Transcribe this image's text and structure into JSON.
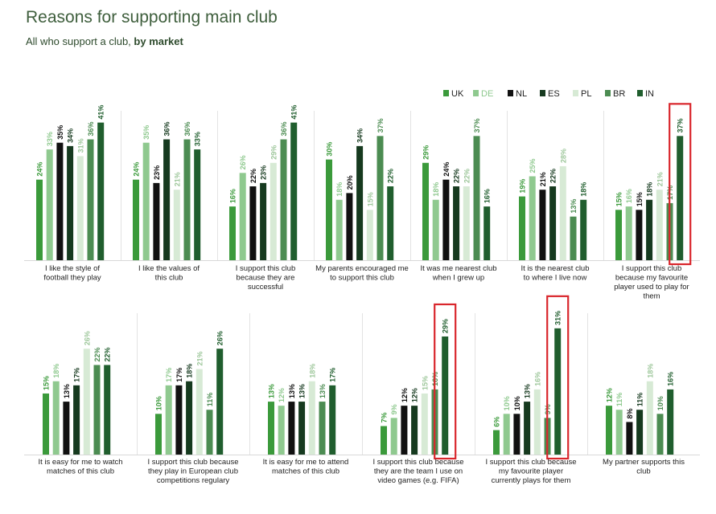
{
  "header": {
    "title": "Reasons for supporting main club",
    "subtitle_prefix": "All who support a club, ",
    "subtitle_bold": "by market"
  },
  "chart_data": {
    "type": "bar",
    "title": "Reasons for supporting main club",
    "ylabel": "",
    "ylim": [
      0,
      45
    ],
    "series": [
      {
        "name": "UK",
        "color": "#3b9a3b"
      },
      {
        "name": "DE",
        "color": "#8fc98f"
      },
      {
        "name": "NL",
        "color": "#111111"
      },
      {
        "name": "ES",
        "color": "#163a1f"
      },
      {
        "name": "PL",
        "color": "#d7ead5"
      },
      {
        "name": "BR",
        "color": "#4c8c52"
      },
      {
        "name": "IN",
        "color": "#205e2e"
      }
    ],
    "panels": [
      {
        "category": "I like the style of football they play",
        "values": [
          24,
          33,
          35,
          34,
          31,
          36,
          41
        ],
        "labels": [
          "24%",
          "33%",
          "35%",
          "34%",
          "31%",
          "36%",
          "41%"
        ],
        "highlight": false
      },
      {
        "category": "I like the values of this club",
        "values": [
          24,
          35,
          23,
          36,
          21,
          36,
          33
        ],
        "labels": [
          "24%",
          "35%",
          "23%",
          "36%",
          "21%",
          "36%",
          "33%"
        ],
        "highlight": false
      },
      {
        "category": "I support this club because they are successful",
        "values": [
          16,
          26,
          22,
          23,
          29,
          36,
          41
        ],
        "labels": [
          "16%",
          "26%",
          "22%",
          "23%",
          "29%",
          "36%",
          "41%"
        ],
        "highlight": false
      },
      {
        "category": "My parents encouraged me to support this club",
        "values": [
          30,
          18,
          20,
          34,
          15,
          37,
          22
        ],
        "labels": [
          "30%",
          "18%",
          "20%",
          "34%",
          "15%",
          "37%",
          "22%"
        ],
        "highlight": false
      },
      {
        "category": "It was me nearest club when I grew up",
        "values": [
          29,
          18,
          24,
          22,
          22,
          37,
          16
        ],
        "labels": [
          "29%",
          "18%",
          "24%",
          "22%",
          "22%",
          "37%",
          "16%"
        ],
        "highlight": false
      },
      {
        "category": "It is the nearest club to where I live now",
        "values": [
          19,
          25,
          21,
          22,
          28,
          13,
          18
        ],
        "labels": [
          "19%",
          "25%",
          "21%",
          "22%",
          "28%",
          "13%",
          "18%"
        ],
        "highlight": false
      },
      {
        "category": "I support this club because my favourite player used to play for them",
        "values": [
          15,
          16,
          15,
          18,
          21,
          17,
          37
        ],
        "labels": [
          "15%",
          "16%",
          "15%",
          "18%",
          "21%",
          "17%",
          "37%"
        ],
        "highlight": true
      },
      {
        "category": "It is easy for me to watch matches of this club",
        "values": [
          15,
          18,
          13,
          17,
          26,
          22,
          22
        ],
        "labels": [
          "15%",
          "18%",
          "13%",
          "17%",
          "26%",
          "22%",
          "22%"
        ],
        "highlight": false
      },
      {
        "category": "I support this club because they play in European club competitions regulary",
        "values": [
          10,
          17,
          17,
          18,
          21,
          11,
          26
        ],
        "labels": [
          "10%",
          "17%",
          "17%",
          "18%",
          "21%",
          "11%",
          "26%"
        ],
        "highlight": false
      },
      {
        "category": "It is easy for me to attend matches of this club",
        "values": [
          13,
          12,
          13,
          13,
          18,
          13,
          17
        ],
        "labels": [
          "13%",
          "12%",
          "13%",
          "13%",
          "18%",
          "13%",
          "17%"
        ],
        "highlight": false
      },
      {
        "category": "I support this club because they are the team I use on video games (e.g. FIFA)",
        "values": [
          7,
          9,
          12,
          12,
          15,
          16,
          29
        ],
        "labels": [
          "7%",
          "9%",
          "12%",
          "12%",
          "15%",
          "16%",
          "29%"
        ],
        "highlight": true
      },
      {
        "category": "I support this club because my favourite player currently plays for them",
        "values": [
          6,
          10,
          10,
          13,
          16,
          9,
          31
        ],
        "labels": [
          "6%",
          "10%",
          "10%",
          "13%",
          "16%",
          "9%",
          "31%"
        ],
        "highlight": true
      },
      {
        "category": "My partner supports this club",
        "values": [
          12,
          11,
          8,
          11,
          18,
          10,
          16
        ],
        "labels": [
          "12%",
          "11%",
          "8%",
          "11%",
          "18%",
          "10%",
          "16%"
        ],
        "highlight": false
      }
    ]
  }
}
